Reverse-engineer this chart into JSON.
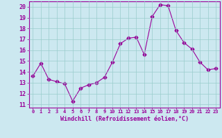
{
  "x": [
    0,
    1,
    2,
    3,
    4,
    5,
    6,
    7,
    8,
    9,
    10,
    11,
    12,
    13,
    14,
    15,
    16,
    17,
    18,
    19,
    20,
    21,
    22,
    23
  ],
  "y": [
    13.6,
    14.8,
    13.3,
    13.1,
    12.9,
    11.3,
    12.5,
    12.8,
    13.0,
    13.5,
    14.9,
    16.6,
    17.1,
    17.2,
    15.6,
    19.1,
    20.2,
    20.1,
    17.8,
    16.7,
    16.1,
    14.9,
    14.2,
    14.3
  ],
  "line_color": "#990099",
  "marker": "D",
  "marker_size": 2.5,
  "xlabel": "Windchill (Refroidissement éolien,°C)",
  "xlabel_color": "#990099",
  "ylabel_ticks": [
    11,
    12,
    13,
    14,
    15,
    16,
    17,
    18,
    19,
    20
  ],
  "xtick_labels": [
    "0",
    "1",
    "2",
    "3",
    "4",
    "5",
    "6",
    "7",
    "8",
    "9",
    "10",
    "11",
    "12",
    "13",
    "14",
    "15",
    "16",
    "17",
    "18",
    "19",
    "20",
    "21",
    "22",
    "23"
  ],
  "ylim": [
    10.7,
    20.5
  ],
  "xlim": [
    -0.5,
    23.5
  ],
  "bg_color": "#cce8f0",
  "grid_color": "#99cccc",
  "tick_color": "#990099",
  "font_color": "#990099"
}
